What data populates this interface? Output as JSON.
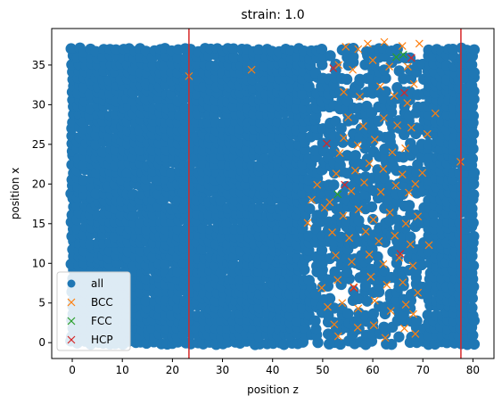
{
  "chart_data": {
    "type": "scatter",
    "title": "strain: 1.0",
    "xlabel": "position z",
    "ylabel": "position x",
    "xlim": [
      -4.1,
      84.2
    ],
    "ylim": [
      -2.0,
      39.6
    ],
    "xticks": [
      0,
      10,
      20,
      30,
      40,
      50,
      60,
      70,
      80
    ],
    "yticks": [
      0,
      5,
      10,
      15,
      20,
      25,
      30,
      35
    ],
    "grid": false,
    "legend": {
      "placement": "lower-left",
      "entries": [
        "all",
        "BCC",
        "FCC",
        "HCP"
      ]
    },
    "colors": {
      "all": "#1f77b4",
      "BCC": "#ff7f0e",
      "FCC": "#2ca02c",
      "HCP": "#d62728",
      "vline": "#d62728"
    },
    "vertical_lines": [
      23.3,
      77.6
    ],
    "series": [
      {
        "name": "all",
        "marker": "circle",
        "description_region": {
          "z": [
            0,
            80
          ],
          "x": [
            0,
            37.5
          ]
        },
        "sparse_regions": [
          {
            "z": [
              47,
              71
            ],
            "x": [
              0,
              38
            ]
          }
        ]
      },
      {
        "name": "BCC",
        "marker": "x",
        "points": [
          [
            23.3,
            33.6
          ],
          [
            35.8,
            34.4
          ],
          [
            77.5,
            22.8
          ],
          [
            72.5,
            28.9
          ],
          [
            70.9,
            26.3
          ],
          [
            71.2,
            12.3
          ],
          [
            69.9,
            21.4
          ],
          [
            47.0,
            15.1
          ],
          [
            47.8,
            18.0
          ],
          [
            48.9,
            19.9
          ],
          [
            50.4,
            17.0
          ],
          [
            49.8,
            6.9
          ],
          [
            51.0,
            4.5
          ],
          [
            52.3,
            2.3
          ],
          [
            53.1,
            0.8
          ],
          [
            57.0,
            1.9
          ],
          [
            60.2,
            2.2
          ],
          [
            62.5,
            0.6
          ],
          [
            66.3,
            1.8
          ],
          [
            68.5,
            1.1
          ],
          [
            68.1,
            3.6
          ],
          [
            54.6,
            37.3
          ],
          [
            57.1,
            37.0
          ],
          [
            59.0,
            37.7
          ],
          [
            62.3,
            37.9
          ],
          [
            65.9,
            37.4
          ],
          [
            69.3,
            37.7
          ],
          [
            53.2,
            35.0
          ],
          [
            56.0,
            34.4
          ],
          [
            60.0,
            35.6
          ],
          [
            63.3,
            34.8
          ],
          [
            67.0,
            34.8
          ],
          [
            68.2,
            32.6
          ],
          [
            54.2,
            31.6
          ],
          [
            57.4,
            31.0
          ],
          [
            61.5,
            32.3
          ],
          [
            64.3,
            31.1
          ],
          [
            66.9,
            30.2
          ],
          [
            55.1,
            28.4
          ],
          [
            58.1,
            27.3
          ],
          [
            62.2,
            28.3
          ],
          [
            64.9,
            27.4
          ],
          [
            67.7,
            27.1
          ],
          [
            54.2,
            25.8
          ],
          [
            57.0,
            24.9
          ],
          [
            60.4,
            25.6
          ],
          [
            63.9,
            24.0
          ],
          [
            66.5,
            24.5
          ],
          [
            53.4,
            23.9
          ],
          [
            56.5,
            21.7
          ],
          [
            59.3,
            22.6
          ],
          [
            62.1,
            21.9
          ],
          [
            65.9,
            21.2
          ],
          [
            68.5,
            20.0
          ],
          [
            52.7,
            21.3
          ],
          [
            55.7,
            19.1
          ],
          [
            58.3,
            20.2
          ],
          [
            61.6,
            19.0
          ],
          [
            64.6,
            19.8
          ],
          [
            67.2,
            18.9
          ],
          [
            51.4,
            17.7
          ],
          [
            54.1,
            16.0
          ],
          [
            57.2,
            16.8
          ],
          [
            60.1,
            15.5
          ],
          [
            63.4,
            16.4
          ],
          [
            66.6,
            15.0
          ],
          [
            69.0,
            15.9
          ],
          [
            51.9,
            13.9
          ],
          [
            55.3,
            13.2
          ],
          [
            58.6,
            14.0
          ],
          [
            61.2,
            12.8
          ],
          [
            64.4,
            13.5
          ],
          [
            67.5,
            12.4
          ],
          [
            52.6,
            11.0
          ],
          [
            55.8,
            10.2
          ],
          [
            59.3,
            11.1
          ],
          [
            62.1,
            9.9
          ],
          [
            65.3,
            10.7
          ],
          [
            68.0,
            9.7
          ],
          [
            53.0,
            7.9
          ],
          [
            56.2,
            7.0
          ],
          [
            59.6,
            8.3
          ],
          [
            62.8,
            7.3
          ],
          [
            66.0,
            7.6
          ],
          [
            69.0,
            6.3
          ],
          [
            53.9,
            5.0
          ],
          [
            57.1,
            4.3
          ],
          [
            60.4,
            5.3
          ],
          [
            63.6,
            4.0
          ],
          [
            66.6,
            4.8
          ]
        ]
      },
      {
        "name": "FCC",
        "marker": "x",
        "points": [
          [
            53.0,
            18.7
          ],
          [
            64.7,
            36.0
          ],
          [
            66.1,
            36.3
          ]
        ]
      },
      {
        "name": "HCP",
        "marker": "x",
        "points": [
          [
            52.1,
            34.6
          ],
          [
            50.8,
            25.1
          ],
          [
            54.4,
            19.9
          ],
          [
            66.3,
            31.5
          ],
          [
            67.7,
            35.9
          ],
          [
            65.5,
            11.2
          ],
          [
            56.2,
            6.9
          ]
        ]
      }
    ]
  }
}
